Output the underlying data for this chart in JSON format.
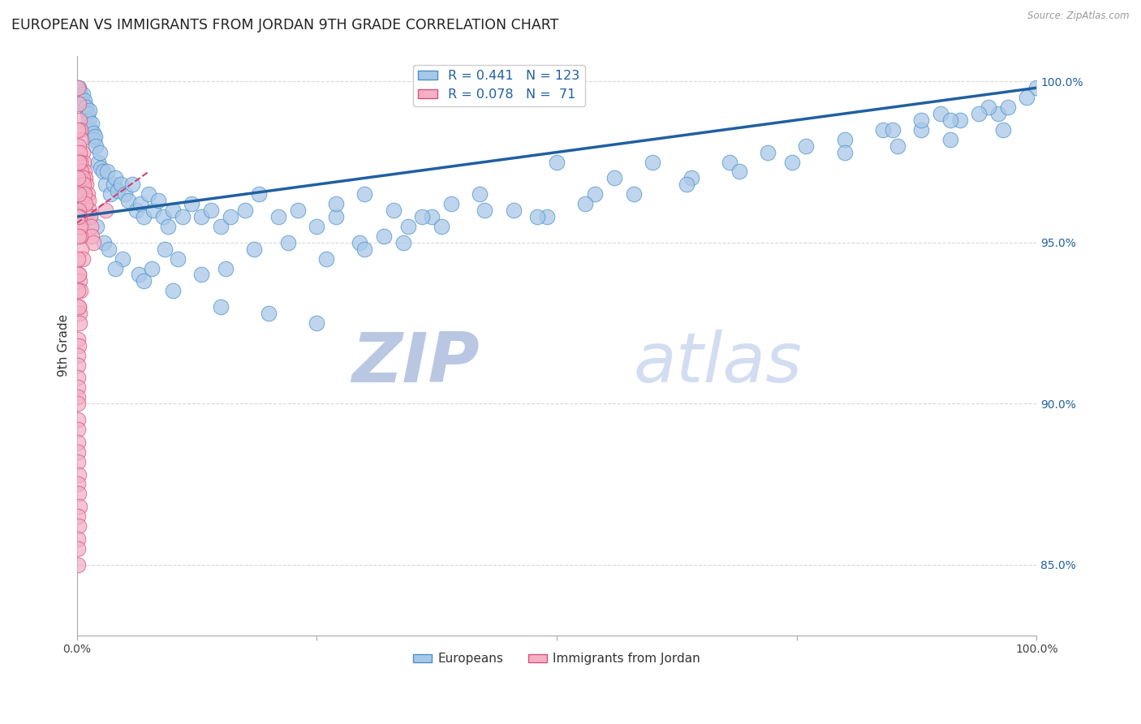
{
  "title": "EUROPEAN VS IMMIGRANTS FROM JORDAN 9TH GRADE CORRELATION CHART",
  "source": "Source: ZipAtlas.com",
  "ylabel": "9th Grade",
  "right_yticks": [
    "85.0%",
    "90.0%",
    "95.0%",
    "100.0%"
  ],
  "right_ytick_vals": [
    0.85,
    0.9,
    0.95,
    1.0
  ],
  "legend_r_blue": "R = 0.441",
  "legend_n_blue": "N = 123",
  "legend_r_pink": "R = 0.078",
  "legend_n_pink": "N =  71",
  "blue_color": "#a8c8e8",
  "blue_edge_color": "#4a90c8",
  "pink_color": "#f4b0c4",
  "pink_edge_color": "#d85080",
  "blue_line_color": "#2060a0",
  "pink_line_color": "#d04070",
  "watermark_zip": "ZIP",
  "watermark_atlas": "atlas",
  "xlim": [
    0.0,
    1.0
  ],
  "ylim": [
    0.828,
    1.008
  ],
  "background_color": "#ffffff",
  "grid_color": "#d8d8d8",
  "title_fontsize": 12.5,
  "axis_label_fontsize": 11,
  "tick_fontsize": 10,
  "watermark_color": "#ccd8ef",
  "blue_line_x0": 0.0,
  "blue_line_y0": 0.958,
  "blue_line_x1": 1.0,
  "blue_line_y1": 0.998,
  "pink_line_x0": 0.0,
  "pink_line_y0": 0.96,
  "pink_line_x1": 0.075,
  "pink_line_y1": 0.964,
  "blue_scatter_x": [
    0.002,
    0.003,
    0.005,
    0.006,
    0.007,
    0.008,
    0.01,
    0.011,
    0.012,
    0.013,
    0.015,
    0.016,
    0.017,
    0.018,
    0.019,
    0.02,
    0.022,
    0.024,
    0.025,
    0.027,
    0.03,
    0.032,
    0.035,
    0.038,
    0.04,
    0.043,
    0.046,
    0.05,
    0.054,
    0.058,
    0.062,
    0.066,
    0.07,
    0.075,
    0.08,
    0.085,
    0.09,
    0.095,
    0.1,
    0.11,
    0.12,
    0.13,
    0.14,
    0.15,
    0.16,
    0.175,
    0.19,
    0.21,
    0.23,
    0.25,
    0.27,
    0.295,
    0.32,
    0.345,
    0.37,
    0.27,
    0.3,
    0.33,
    0.36,
    0.39,
    0.42,
    0.455,
    0.49,
    0.5,
    0.54,
    0.56,
    0.6,
    0.64,
    0.68,
    0.72,
    0.76,
    0.8,
    0.84,
    0.88,
    0.92,
    0.96,
    1.0,
    0.85,
    0.9,
    0.95,
    0.88,
    0.91,
    0.94,
    0.97,
    0.99,
    0.003,
    0.004,
    0.006,
    0.009,
    0.014,
    0.021,
    0.028,
    0.033,
    0.048,
    0.065,
    0.078,
    0.092,
    0.105,
    0.13,
    0.155,
    0.185,
    0.22,
    0.26,
    0.3,
    0.34,
    0.38,
    0.425,
    0.48,
    0.53,
    0.58,
    0.635,
    0.69,
    0.745,
    0.8,
    0.855,
    0.91,
    0.965,
    0.04,
    0.07,
    0.1,
    0.15,
    0.2,
    0.25
  ],
  "blue_scatter_y": [
    0.998,
    0.997,
    0.995,
    0.996,
    0.993,
    0.994,
    0.992,
    0.99,
    0.988,
    0.991,
    0.985,
    0.987,
    0.984,
    0.982,
    0.983,
    0.98,
    0.975,
    0.978,
    0.973,
    0.972,
    0.968,
    0.972,
    0.965,
    0.968,
    0.97,
    0.966,
    0.968,
    0.965,
    0.963,
    0.968,
    0.96,
    0.962,
    0.958,
    0.965,
    0.96,
    0.963,
    0.958,
    0.955,
    0.96,
    0.958,
    0.962,
    0.958,
    0.96,
    0.955,
    0.958,
    0.96,
    0.965,
    0.958,
    0.96,
    0.955,
    0.958,
    0.95,
    0.952,
    0.955,
    0.958,
    0.962,
    0.965,
    0.96,
    0.958,
    0.962,
    0.965,
    0.96,
    0.958,
    0.975,
    0.965,
    0.97,
    0.975,
    0.97,
    0.975,
    0.978,
    0.98,
    0.982,
    0.985,
    0.985,
    0.988,
    0.99,
    0.998,
    0.985,
    0.99,
    0.992,
    0.988,
    0.988,
    0.99,
    0.992,
    0.995,
    0.968,
    0.97,
    0.965,
    0.96,
    0.958,
    0.955,
    0.95,
    0.948,
    0.945,
    0.94,
    0.942,
    0.948,
    0.945,
    0.94,
    0.942,
    0.948,
    0.95,
    0.945,
    0.948,
    0.95,
    0.955,
    0.96,
    0.958,
    0.962,
    0.965,
    0.968,
    0.972,
    0.975,
    0.978,
    0.98,
    0.982,
    0.985,
    0.942,
    0.938,
    0.935,
    0.93,
    0.928,
    0.925
  ],
  "pink_scatter_x": [
    0.001,
    0.002,
    0.003,
    0.004,
    0.005,
    0.006,
    0.007,
    0.008,
    0.009,
    0.01,
    0.011,
    0.012,
    0.013,
    0.014,
    0.015,
    0.016,
    0.017,
    0.002,
    0.003,
    0.004,
    0.005,
    0.006,
    0.007,
    0.008,
    0.009,
    0.003,
    0.004,
    0.005,
    0.006,
    0.002,
    0.003,
    0.004,
    0.002,
    0.003,
    0.004,
    0.002,
    0.003,
    0.001,
    0.002,
    0.001,
    0.002,
    0.001,
    0.002,
    0.001,
    0.002,
    0.001,
    0.002,
    0.003,
    0.001,
    0.002,
    0.001,
    0.001,
    0.001,
    0.001,
    0.001,
    0.001,
    0.001,
    0.001,
    0.03,
    0.001,
    0.001,
    0.001,
    0.002,
    0.001,
    0.002,
    0.003,
    0.001,
    0.002,
    0.001,
    0.001,
    0.001
  ],
  "pink_scatter_y": [
    0.998,
    0.993,
    0.988,
    0.985,
    0.982,
    0.978,
    0.975,
    0.972,
    0.97,
    0.968,
    0.965,
    0.963,
    0.96,
    0.958,
    0.955,
    0.952,
    0.95,
    0.98,
    0.978,
    0.975,
    0.972,
    0.97,
    0.968,
    0.965,
    0.962,
    0.955,
    0.952,
    0.948,
    0.945,
    0.96,
    0.958,
    0.955,
    0.94,
    0.938,
    0.935,
    0.93,
    0.928,
    0.985,
    0.975,
    0.97,
    0.965,
    0.958,
    0.952,
    0.945,
    0.94,
    0.935,
    0.93,
    0.925,
    0.92,
    0.918,
    0.915,
    0.912,
    0.908,
    0.905,
    0.902,
    0.9,
    0.895,
    0.892,
    0.96,
    0.888,
    0.885,
    0.882,
    0.878,
    0.875,
    0.872,
    0.868,
    0.865,
    0.862,
    0.858,
    0.855,
    0.85
  ]
}
